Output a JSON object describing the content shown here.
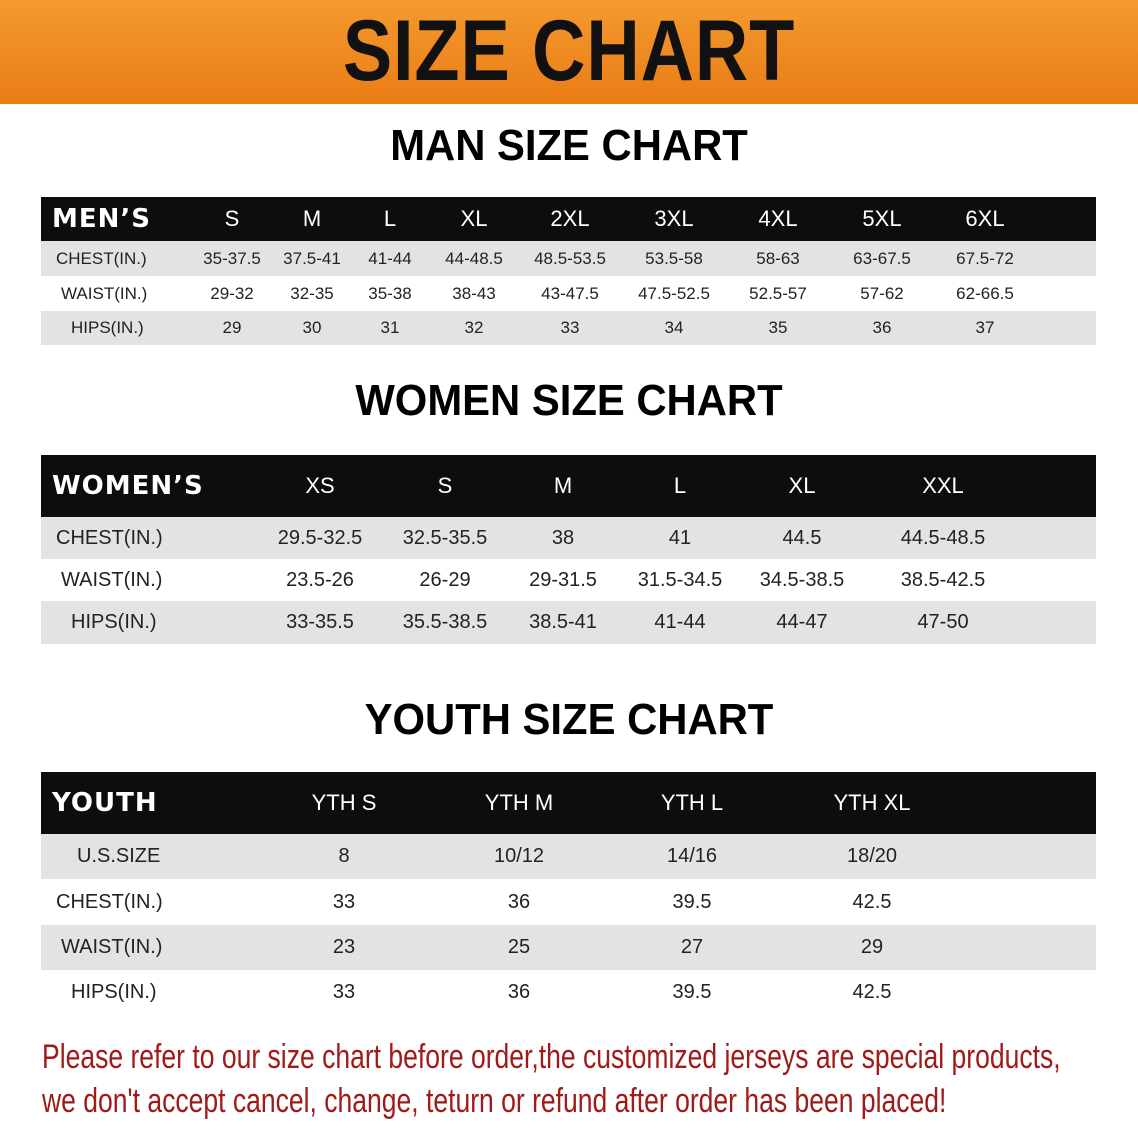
{
  "banner": {
    "title": "SIZE CHART",
    "color": "#ee8420"
  },
  "men": {
    "title": "MAN SIZE CHART",
    "header": [
      "MEN’S",
      "S",
      "M",
      "L",
      "XL",
      "2XL",
      "3XL",
      "4XL",
      "5XL",
      "6XL"
    ],
    "rows": [
      [
        "CHEST(IN.)",
        "35-37.5",
        "37.5-41",
        "41-44",
        "44-48.5",
        "48.5-53.5",
        "53.5-58",
        "58-63",
        "63-67.5",
        "67.5-72"
      ],
      [
        "WAIST(IN.)",
        "29-32",
        "32-35",
        "35-38",
        "38-43",
        "43-47.5",
        "47.5-52.5",
        "52.5-57",
        "57-62",
        "62-66.5"
      ],
      [
        "HIPS(IN.)",
        "29",
        "30",
        "31",
        "32",
        "33",
        "34",
        "35",
        "36",
        "37"
      ]
    ]
  },
  "women": {
    "title": "WOMEN SIZE CHART",
    "header": [
      "WOMEN’S",
      "XS",
      "S",
      "M",
      "L",
      "XL",
      "XXL"
    ],
    "rows": [
      [
        "CHEST(IN.)",
        "29.5-32.5",
        "32.5-35.5",
        "38",
        "41",
        "44.5",
        "44.5-48.5"
      ],
      [
        "WAIST(IN.)",
        "23.5-26",
        "26-29",
        "29-31.5",
        "31.5-34.5",
        "34.5-38.5",
        "38.5-42.5"
      ],
      [
        "HIPS(IN.)",
        "33-35.5",
        "35.5-38.5",
        "38.5-41",
        "41-44",
        "44-47",
        "47-50"
      ]
    ]
  },
  "youth": {
    "title": "YOUTH SIZE CHART",
    "header": [
      "YOUTH",
      "YTH S",
      "YTH M",
      "YTH L",
      "YTH XL"
    ],
    "rows": [
      [
        "U.S.SIZE",
        "8",
        "10/12",
        "14/16",
        "18/20"
      ],
      [
        "CHEST(IN.)",
        "33",
        "36",
        "39.5",
        "42.5"
      ],
      [
        "WAIST(IN.)",
        "23",
        "25",
        "27",
        "29"
      ],
      [
        "HIPS(IN.)",
        "33",
        "36",
        "39.5",
        "42.5"
      ]
    ]
  },
  "note": {
    "line1": "Please refer to our size chart before order,the customized jerseys are special products,",
    "line2": "we don't accept cancel, change, teturn or refund after order has been placed!",
    "color": "#a11a1a"
  }
}
